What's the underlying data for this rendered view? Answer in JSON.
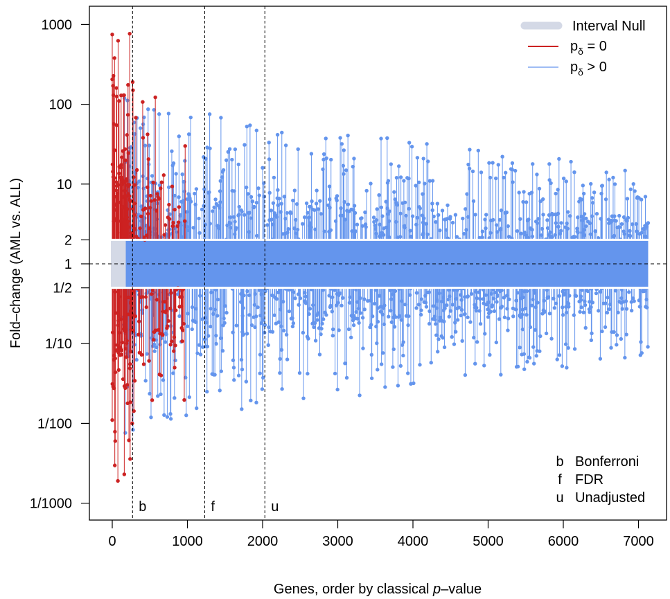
{
  "chart_data": {
    "type": "scatter",
    "xlabel_pre": "Genes, order by classical ",
    "xlabel_italic": "p",
    "xlabel_post": "–value",
    "ylabel": "Fold–change (AML vs. ALL)",
    "xlim": [
      0,
      7129
    ],
    "ylim_log10": [
      -3,
      3
    ],
    "log_scale_y": true,
    "grid": false,
    "x_ticks": [
      0,
      1000,
      2000,
      3000,
      4000,
      5000,
      6000,
      7000
    ],
    "x_tick_labels": [
      "0",
      "1000",
      "2000",
      "3000",
      "4000",
      "5000",
      "6000",
      "7000"
    ],
    "y_ticks": [
      1000,
      100,
      10,
      2,
      1,
      0.5,
      0.1,
      0.01,
      0.001
    ],
    "y_tick_labels": [
      "1000",
      "100",
      "10",
      "2",
      "1",
      "1/2",
      "1/10",
      "1/100",
      "1/1000"
    ],
    "reference_line_y": 1,
    "interval_null": {
      "lower": 0.5,
      "upper": 2,
      "name": "Interval Null",
      "color": "#d4d9e6"
    },
    "series": [
      {
        "name_main": "p",
        "name_sub": "δ",
        "name_rest": " = 0",
        "color": "#cc2222",
        "x_range": [
          0,
          970
        ]
      },
      {
        "name_main": "p",
        "name_sub": "δ",
        "name_rest": " > 0",
        "color": "#6495ed",
        "x_range": [
          0,
          7129
        ]
      }
    ],
    "legend_position": "top-right",
    "cutoffs": [
      {
        "letter": "b",
        "x": 270,
        "label": "Bonferroni"
      },
      {
        "letter": "f",
        "x": 1230,
        "label": "FDR"
      },
      {
        "letter": "u",
        "x": 2030,
        "label": "Unadjusted"
      }
    ],
    "highlighted_points": [
      {
        "x": 0,
        "y": 750,
        "series": 0
      },
      {
        "x": 15,
        "y": 130,
        "series": 0
      },
      {
        "x": 30,
        "y": 380,
        "series": 0
      },
      {
        "x": 55,
        "y": 160,
        "series": 0
      },
      {
        "x": 90,
        "y": 110,
        "series": 0
      },
      {
        "x": 150,
        "y": 130,
        "series": 0
      },
      {
        "x": 210,
        "y": 175,
        "series": 0
      },
      {
        "x": 410,
        "y": 38,
        "series": 0
      },
      {
        "x": 470,
        "y": 42,
        "series": 0
      },
      {
        "x": 970,
        "y": 30,
        "series": 0
      },
      {
        "x": 0,
        "y": 0.011,
        "series": 0
      },
      {
        "x": 40,
        "y": 0.006,
        "series": 0
      },
      {
        "x": 75,
        "y": 0.0019,
        "series": 0
      },
      {
        "x": 160,
        "y": 0.0023,
        "series": 0
      },
      {
        "x": 830,
        "y": 0.05,
        "series": 0
      },
      {
        "x": 1300,
        "y": 28,
        "series": 1
      },
      {
        "x": 1480,
        "y": 15,
        "series": 1
      },
      {
        "x": 1760,
        "y": 31,
        "series": 1
      },
      {
        "x": 1920,
        "y": 47,
        "series": 1
      },
      {
        "x": 2000,
        "y": 16,
        "series": 1
      },
      {
        "x": 2720,
        "y": 8.3,
        "series": 1
      },
      {
        "x": 4080,
        "y": 10.5,
        "series": 1
      },
      {
        "x": 5900,
        "y": 7.6,
        "series": 1
      },
      {
        "x": 1260,
        "y": 0.025,
        "series": 1
      },
      {
        "x": 1450,
        "y": 0.045,
        "series": 1
      },
      {
        "x": 1620,
        "y": 0.035,
        "series": 1
      },
      {
        "x": 4420,
        "y": 0.09,
        "series": 1
      },
      {
        "x": 6840,
        "y": 0.13,
        "series": 1
      }
    ]
  }
}
